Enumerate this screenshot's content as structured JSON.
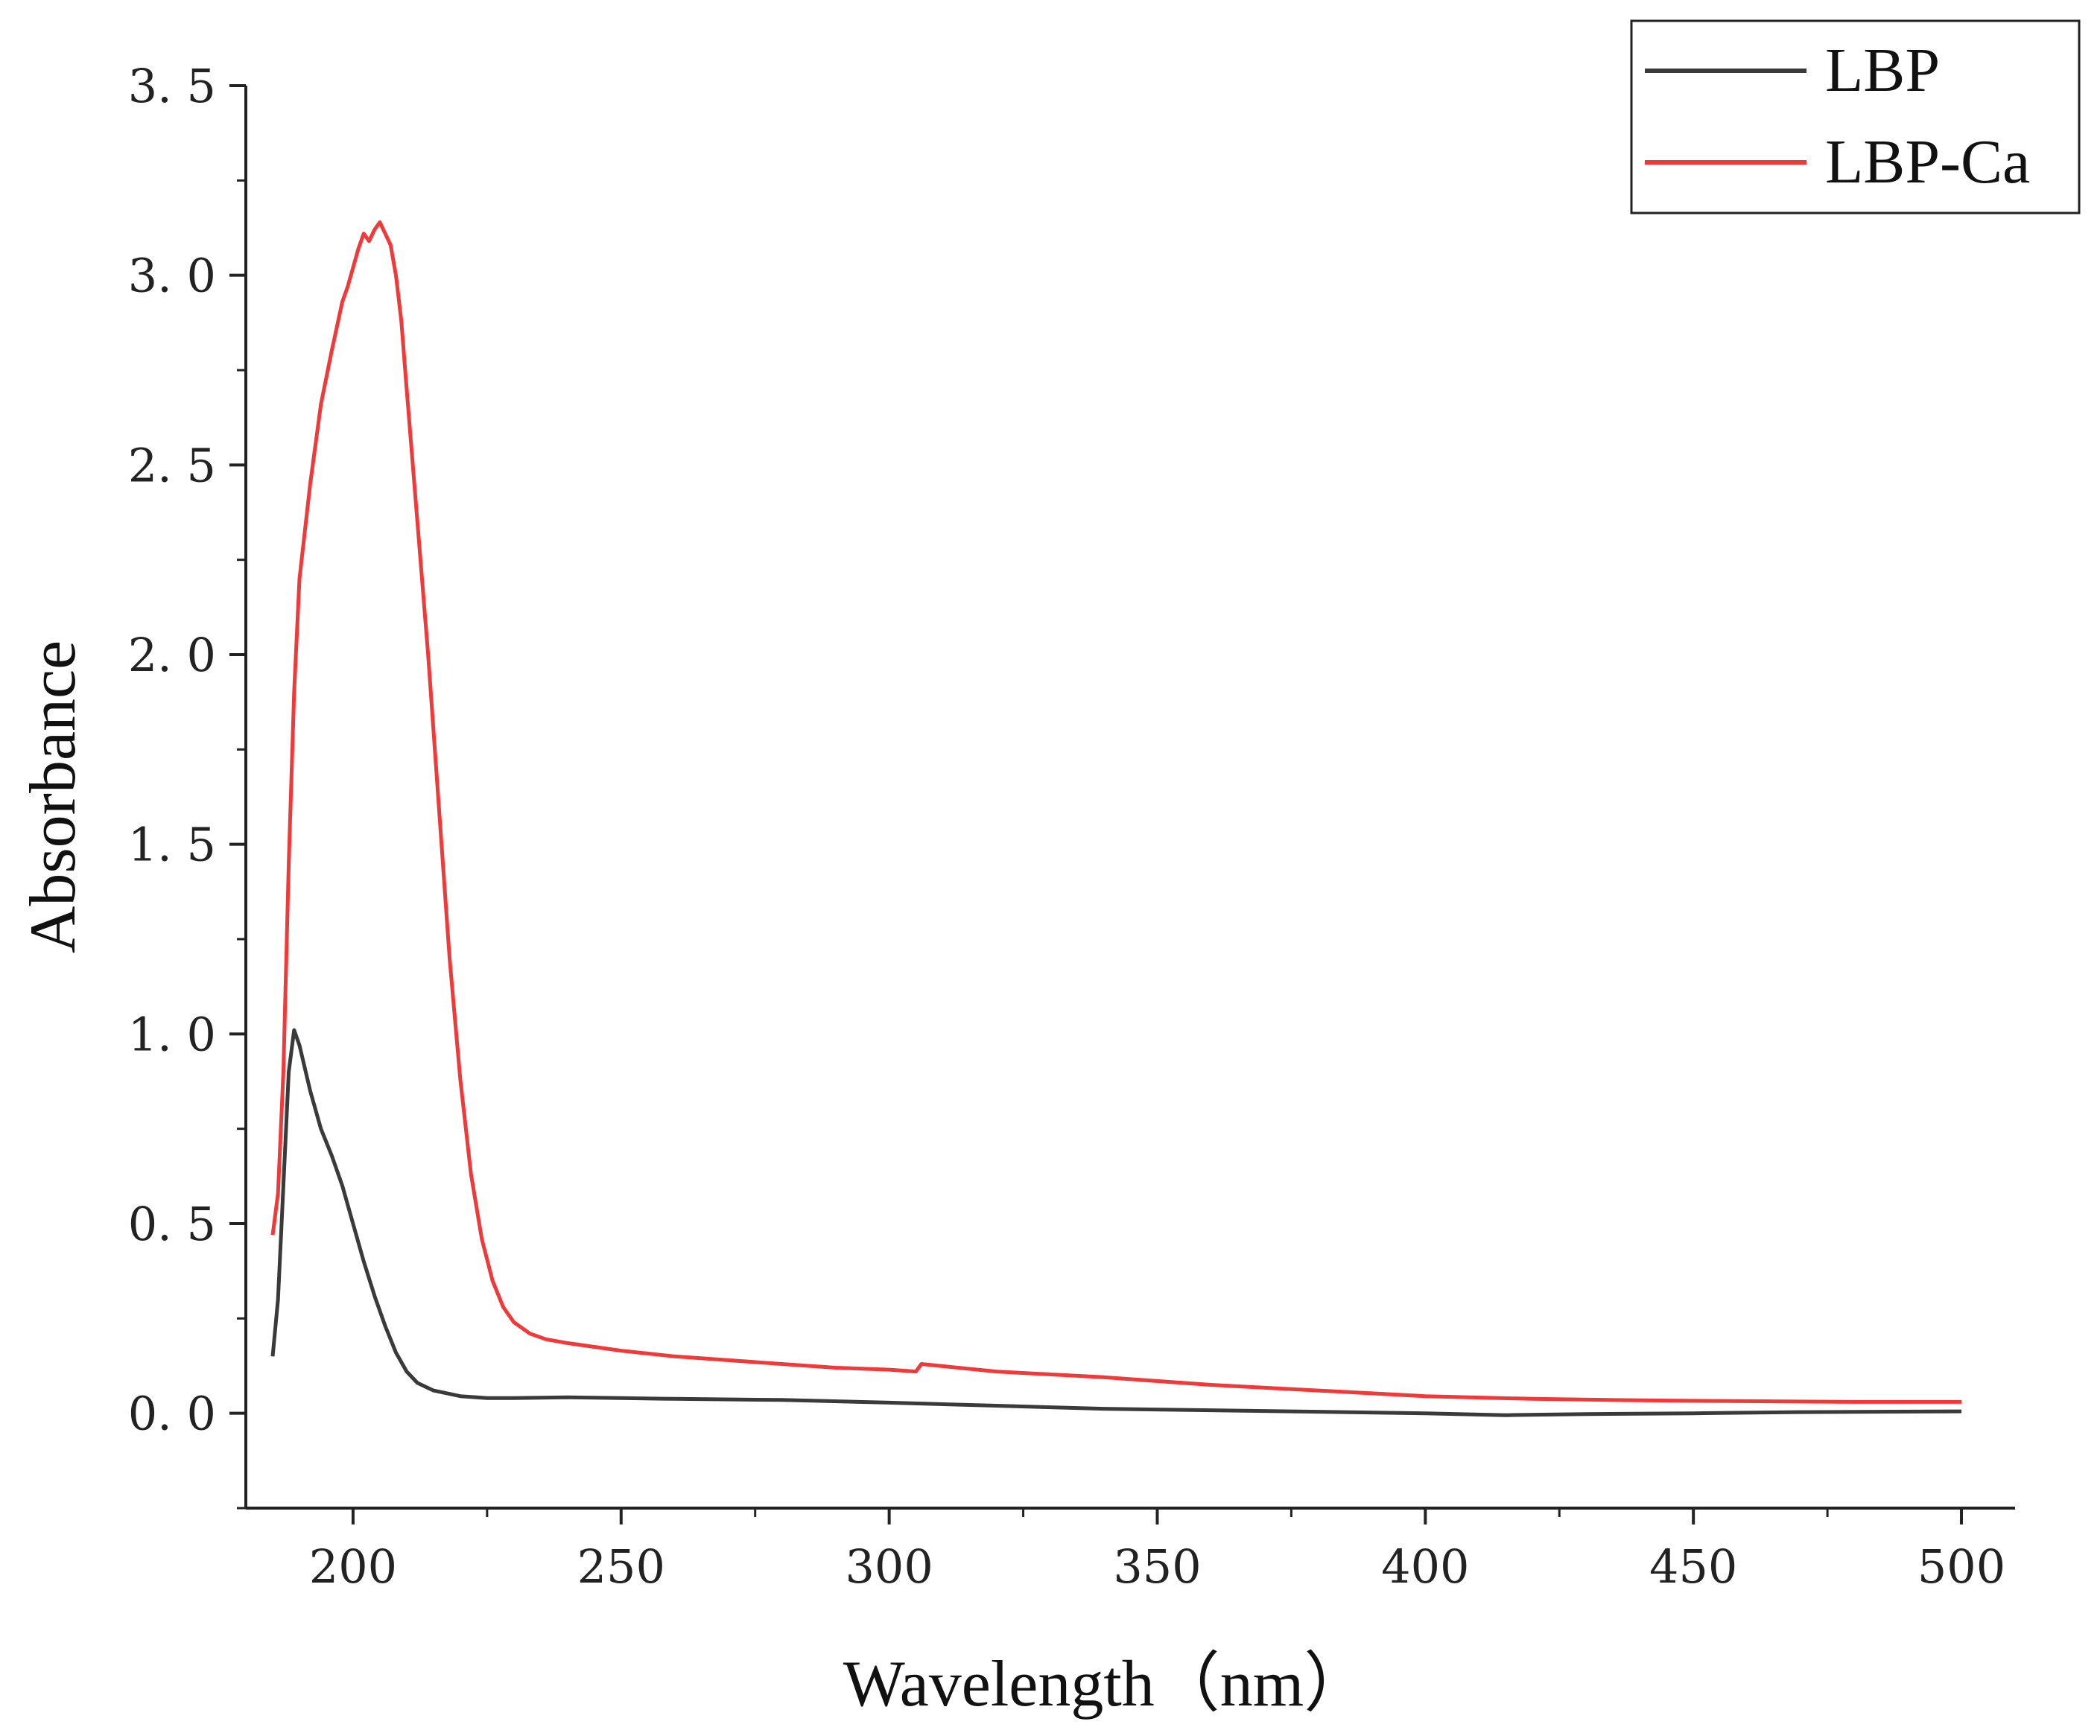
{
  "chart_data": {
    "type": "line",
    "xlabel": "Wavelength（nm）",
    "ylabel": "Absorbance",
    "xlim": [
      180,
      510
    ],
    "ylim": [
      -0.25,
      3.5
    ],
    "x_ticks": [
      200,
      250,
      300,
      350,
      400,
      450,
      500
    ],
    "x_tick_labels": [
      "200",
      "250",
      "300",
      "350",
      "400",
      "450",
      "500"
    ],
    "y_ticks": [
      0.0,
      0.5,
      1.0,
      1.5,
      2.0,
      2.5,
      3.0,
      3.5
    ],
    "y_tick_labels": [
      "0. 0",
      "0. 5",
      "1. 0",
      "1. 5",
      "2. 0",
      "2. 5",
      "3. 0",
      "3. 5"
    ],
    "grid": false,
    "legend": {
      "position": "top-right"
    },
    "series": [
      {
        "name": "LBP",
        "color": "#3a3a3a",
        "points": [
          [
            185,
            0.15
          ],
          [
            186,
            0.3
          ],
          [
            187,
            0.6
          ],
          [
            188,
            0.9
          ],
          [
            189,
            1.01
          ],
          [
            190,
            0.97
          ],
          [
            192,
            0.85
          ],
          [
            194,
            0.75
          ],
          [
            196,
            0.68
          ],
          [
            198,
            0.6
          ],
          [
            200,
            0.5
          ],
          [
            202,
            0.4
          ],
          [
            204,
            0.31
          ],
          [
            206,
            0.23
          ],
          [
            208,
            0.16
          ],
          [
            210,
            0.11
          ],
          [
            212,
            0.08
          ],
          [
            215,
            0.06
          ],
          [
            220,
            0.045
          ],
          [
            225,
            0.04
          ],
          [
            230,
            0.04
          ],
          [
            240,
            0.042
          ],
          [
            250,
            0.04
          ],
          [
            260,
            0.038
          ],
          [
            280,
            0.035
          ],
          [
            300,
            0.028
          ],
          [
            320,
            0.02
          ],
          [
            340,
            0.012
          ],
          [
            360,
            0.008
          ],
          [
            380,
            0.004
          ],
          [
            400,
            0.0
          ],
          [
            415,
            -0.005
          ],
          [
            430,
            -0.002
          ],
          [
            450,
            0.0
          ],
          [
            470,
            0.003
          ],
          [
            500,
            0.005
          ]
        ]
      },
      {
        "name": "LBP-Ca",
        "color": "#f03a3a",
        "points": [
          [
            185,
            0.47
          ],
          [
            186,
            0.58
          ],
          [
            187,
            0.9
          ],
          [
            188,
            1.45
          ],
          [
            189,
            1.9
          ],
          [
            190,
            2.2
          ],
          [
            192,
            2.45
          ],
          [
            194,
            2.66
          ],
          [
            196,
            2.8
          ],
          [
            198,
            2.93
          ],
          [
            199,
            2.97
          ],
          [
            200,
            3.02
          ],
          [
            201,
            3.07
          ],
          [
            202,
            3.11
          ],
          [
            203,
            3.09
          ],
          [
            204,
            3.12
          ],
          [
            205,
            3.14
          ],
          [
            206,
            3.11
          ],
          [
            207,
            3.08
          ],
          [
            208,
            3.0
          ],
          [
            209,
            2.88
          ],
          [
            210,
            2.7
          ],
          [
            212,
            2.35
          ],
          [
            214,
            2.0
          ],
          [
            216,
            1.6
          ],
          [
            218,
            1.2
          ],
          [
            220,
            0.88
          ],
          [
            222,
            0.63
          ],
          [
            224,
            0.46
          ],
          [
            226,
            0.35
          ],
          [
            228,
            0.28
          ],
          [
            230,
            0.24
          ],
          [
            233,
            0.21
          ],
          [
            236,
            0.195
          ],
          [
            240,
            0.185
          ],
          [
            250,
            0.165
          ],
          [
            260,
            0.15
          ],
          [
            270,
            0.14
          ],
          [
            280,
            0.13
          ],
          [
            290,
            0.12
          ],
          [
            300,
            0.115
          ],
          [
            305,
            0.11
          ],
          [
            306,
            0.13
          ],
          [
            320,
            0.11
          ],
          [
            340,
            0.095
          ],
          [
            360,
            0.075
          ],
          [
            380,
            0.06
          ],
          [
            400,
            0.045
          ],
          [
            420,
            0.038
          ],
          [
            440,
            0.034
          ],
          [
            460,
            0.032
          ],
          [
            480,
            0.03
          ],
          [
            500,
            0.03
          ]
        ]
      }
    ]
  }
}
